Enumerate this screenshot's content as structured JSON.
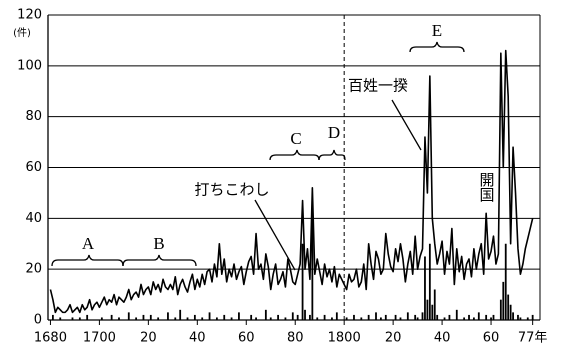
{
  "chart_data": {
    "type": "line",
    "y_unit": "(件)",
    "annotations": [
      "A",
      "B",
      "C",
      "D",
      "E",
      "開国"
    ],
    "x": [
      1680,
      1681,
      1682,
      1683,
      1684,
      1685,
      1686,
      1687,
      1688,
      1689,
      1690,
      1691,
      1692,
      1693,
      1694,
      1695,
      1696,
      1697,
      1698,
      1699,
      1700,
      1701,
      1702,
      1703,
      1704,
      1705,
      1706,
      1707,
      1708,
      1709,
      1710,
      1711,
      1712,
      1713,
      1714,
      1715,
      1716,
      1717,
      1718,
      1719,
      1720,
      1721,
      1722,
      1723,
      1724,
      1725,
      1726,
      1727,
      1728,
      1729,
      1730,
      1731,
      1732,
      1733,
      1734,
      1735,
      1736,
      1737,
      1738,
      1739,
      1740,
      1741,
      1742,
      1743,
      1744,
      1745,
      1746,
      1747,
      1748,
      1749,
      1750,
      1751,
      1752,
      1753,
      1754,
      1755,
      1756,
      1757,
      1758,
      1759,
      1760,
      1761,
      1762,
      1763,
      1764,
      1765,
      1766,
      1767,
      1768,
      1769,
      1770,
      1771,
      1772,
      1773,
      1774,
      1775,
      1776,
      1777,
      1778,
      1779,
      1780,
      1781,
      1782,
      1783,
      1784,
      1785,
      1786,
      1787,
      1788,
      1789,
      1790,
      1791,
      1792,
      1793,
      1794,
      1795,
      1796,
      1797,
      1798,
      1799,
      1800,
      1801,
      1802,
      1803,
      1804,
      1805,
      1806,
      1807,
      1808,
      1809,
      1810,
      1811,
      1812,
      1813,
      1814,
      1815,
      1816,
      1817,
      1818,
      1819,
      1820,
      1821,
      1822,
      1823,
      1824,
      1825,
      1826,
      1827,
      1828,
      1829,
      1830,
      1831,
      1832,
      1833,
      1834,
      1835,
      1836,
      1837,
      1838,
      1839,
      1840,
      1841,
      1842,
      1843,
      1844,
      1845,
      1846,
      1847,
      1848,
      1849,
      1850,
      1851,
      1852,
      1853,
      1854,
      1855,
      1856,
      1857,
      1858,
      1859,
      1860,
      1861,
      1862,
      1863,
      1864,
      1865,
      1866,
      1867,
      1868,
      1869,
      1870,
      1871,
      1872,
      1873,
      1874,
      1875,
      1876,
      1877
    ],
    "series": [
      {
        "name": "百姓一揆",
        "type": "line",
        "color": "#000000",
        "values": [
          12,
          8,
          3,
          5,
          4,
          3,
          3,
          4,
          6,
          3,
          4,
          5,
          3,
          6,
          4,
          5,
          8,
          4,
          6,
          7,
          5,
          7,
          9,
          6,
          8,
          7,
          10,
          6,
          9,
          8,
          7,
          9,
          12,
          8,
          10,
          11,
          9,
          14,
          10,
          12,
          13,
          10,
          15,
          12,
          14,
          11,
          16,
          13,
          12,
          14,
          12,
          17,
          10,
          14,
          16,
          13,
          11,
          15,
          18,
          12,
          16,
          13,
          18,
          14,
          19,
          20,
          15,
          22,
          17,
          30,
          18,
          24,
          15,
          20,
          17,
          22,
          16,
          19,
          21,
          14,
          19,
          23,
          25,
          18,
          34,
          20,
          22,
          16,
          26,
          21,
          12,
          18,
          22,
          14,
          16,
          19,
          13,
          24,
          20,
          15,
          14,
          18,
          22,
          47,
          20,
          28,
          16,
          52,
          18,
          24,
          19,
          14,
          22,
          17,
          20,
          15,
          21,
          13,
          18,
          16,
          14,
          12,
          18,
          15,
          16,
          20,
          13,
          15,
          22,
          12,
          30,
          22,
          16,
          27,
          24,
          18,
          20,
          34,
          26,
          21,
          19,
          28,
          23,
          30,
          24,
          15,
          22,
          27,
          18,
          33,
          20,
          25,
          28,
          72,
          50,
          96,
          40,
          30,
          22,
          26,
          31,
          18,
          27,
          22,
          36,
          14,
          28,
          19,
          25,
          16,
          22,
          24,
          17,
          28,
          20,
          26,
          30,
          18,
          42,
          24,
          27,
          33,
          22,
          26,
          105,
          60,
          106,
          88,
          30,
          68,
          50,
          28,
          18,
          22,
          28,
          32,
          36,
          40
        ]
      },
      {
        "name": "打ちこわし",
        "type": "bar",
        "color": "#000000",
        "values": [
          0,
          2,
          0,
          0,
          1,
          0,
          0,
          0,
          0,
          1,
          0,
          0,
          1,
          0,
          0,
          2,
          0,
          0,
          0,
          0,
          0,
          1,
          0,
          0,
          0,
          2,
          0,
          0,
          1,
          0,
          0,
          0,
          3,
          0,
          0,
          1,
          0,
          0,
          2,
          0,
          0,
          2,
          0,
          0,
          1,
          0,
          0,
          0,
          3,
          0,
          0,
          1,
          0,
          4,
          0,
          0,
          1,
          0,
          0,
          2,
          0,
          0,
          1,
          0,
          0,
          3,
          0,
          0,
          1,
          0,
          0,
          2,
          0,
          0,
          1,
          0,
          0,
          3,
          0,
          0,
          0,
          0,
          2,
          0,
          1,
          0,
          0,
          0,
          4,
          0,
          1,
          0,
          0,
          2,
          0,
          0,
          1,
          0,
          0,
          3,
          0,
          2,
          0,
          30,
          4,
          0,
          2,
          40,
          0,
          1,
          0,
          0,
          2,
          0,
          0,
          1,
          0,
          3,
          0,
          0,
          0,
          1,
          0,
          0,
          2,
          0,
          0,
          1,
          0,
          0,
          2,
          0,
          0,
          3,
          0,
          1,
          0,
          2,
          0,
          0,
          0,
          2,
          0,
          1,
          0,
          0,
          3,
          0,
          0,
          2,
          1,
          0,
          3,
          25,
          8,
          30,
          6,
          12,
          2,
          0,
          0,
          1,
          0,
          2,
          0,
          0,
          4,
          0,
          0,
          1,
          0,
          2,
          0,
          1,
          0,
          3,
          0,
          0,
          2,
          0,
          1,
          2,
          0,
          0,
          8,
          15,
          30,
          10,
          6,
          3,
          0,
          2,
          1,
          0,
          0,
          1,
          0,
          2
        ]
      }
    ],
    "xlim": [
      1679,
      1880
    ],
    "xticks": [
      1680,
      1700,
      {
        "value": 1720,
        "label": "20"
      },
      {
        "value": 1740,
        "label": "40"
      },
      {
        "value": 1760,
        "label": "60"
      },
      {
        "value": 1780,
        "label": "80"
      },
      1800,
      {
        "value": 1820,
        "label": "20"
      },
      {
        "value": 1840,
        "label": "40"
      },
      {
        "value": 1860,
        "label": "60"
      },
      {
        "value": 1877,
        "label": "77年"
      }
    ],
    "ylim": [
      0,
      120
    ],
    "yticks": [
      0,
      20,
      40,
      60,
      80,
      100,
      120
    ],
    "grid": true,
    "divider_x": 1800
  }
}
